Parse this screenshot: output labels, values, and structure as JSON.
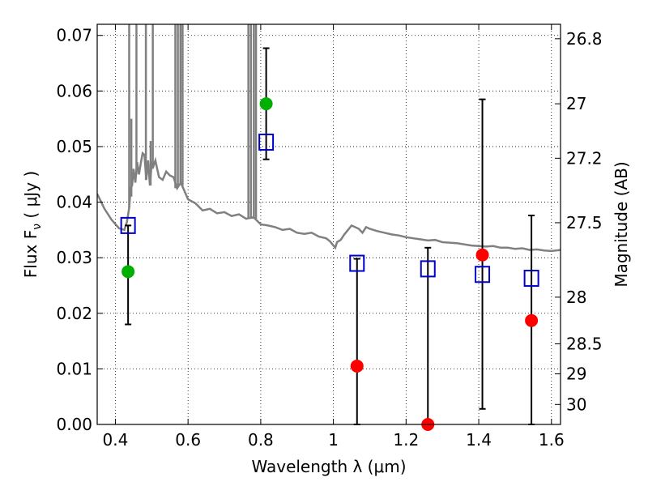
{
  "chart_data": {
    "type": "scatter",
    "xlabel": "Wavelength  λ (μm)",
    "ylabel": "Flux  F",
    "ylabel_sub": "ν",
    "ylabel_unit": " ( μJy )",
    "y2label": "Magnitude (AB)",
    "xlim": [
      0.35,
      1.625
    ],
    "ylim": [
      0.0,
      0.072
    ],
    "grid": true,
    "x_ticks": [
      0.4,
      0.6,
      0.8,
      1.0,
      1.2,
      1.4,
      1.6
    ],
    "x_tick_labels": [
      "0.4",
      "0.6",
      "0.8",
      "1",
      "1.2",
      "1.4",
      "1.6"
    ],
    "y_ticks": [
      0.0,
      0.01,
      0.02,
      0.03,
      0.04,
      0.05,
      0.06,
      0.07
    ],
    "y_tick_labels": [
      "0.00",
      "0.01",
      "0.02",
      "0.03",
      "0.04",
      "0.05",
      "0.06",
      "0.07"
    ],
    "y2_ticks": [
      {
        "label": "26.8",
        "flux": 0.0694
      },
      {
        "label": "27",
        "flux": 0.0577
      },
      {
        "label": "27.2",
        "flux": 0.0479
      },
      {
        "label": "27.5",
        "flux": 0.0363
      },
      {
        "label": "28",
        "flux": 0.0229
      },
      {
        "label": "28.5",
        "flux": 0.0145
      },
      {
        "label": "29",
        "flux": 0.0091
      },
      {
        "label": "30",
        "flux": 0.0036
      }
    ],
    "series": [
      {
        "kind": "model_spectrum",
        "color": "#808080",
        "x": [
          0.35,
          0.37,
          0.39,
          0.41,
          0.425,
          0.432,
          0.438,
          0.442,
          0.446,
          0.45,
          0.455,
          0.46,
          0.465,
          0.47,
          0.475,
          0.48,
          0.485,
          0.49,
          0.495,
          0.5,
          0.505,
          0.51,
          0.52,
          0.53,
          0.54,
          0.55,
          0.56,
          0.57,
          0.58,
          0.59,
          0.6,
          0.62,
          0.64,
          0.66,
          0.68,
          0.7,
          0.72,
          0.74,
          0.76,
          0.78,
          0.8,
          0.82,
          0.84,
          0.86,
          0.88,
          0.9,
          0.92,
          0.94,
          0.96,
          0.98,
          0.99,
          1.0,
          1.005,
          1.01,
          1.02,
          1.03,
          1.04,
          1.05,
          1.06,
          1.07,
          1.08,
          1.09,
          1.1,
          1.12,
          1.14,
          1.16,
          1.18,
          1.2,
          1.22,
          1.24,
          1.26,
          1.28,
          1.3,
          1.32,
          1.34,
          1.36,
          1.38,
          1.4,
          1.42,
          1.44,
          1.46,
          1.48,
          1.5,
          1.52,
          1.54,
          1.56,
          1.58,
          1.6,
          1.625
        ],
        "y": [
          0.0415,
          0.0388,
          0.0368,
          0.0353,
          0.035,
          0.0365,
          0.039,
          0.0425,
          0.043,
          0.046,
          0.0435,
          0.0472,
          0.045,
          0.047,
          0.0488,
          0.0485,
          0.044,
          0.0475,
          0.043,
          0.047,
          0.0465,
          0.0475,
          0.0445,
          0.044,
          0.0455,
          0.0448,
          0.0445,
          0.0425,
          0.0435,
          0.042,
          0.0405,
          0.0398,
          0.0385,
          0.0388,
          0.038,
          0.0382,
          0.0375,
          0.0378,
          0.037,
          0.0373,
          0.036,
          0.0358,
          0.0355,
          0.035,
          0.0352,
          0.0345,
          0.0343,
          0.0345,
          0.0338,
          0.0335,
          0.033,
          0.0322,
          0.0318,
          0.0328,
          0.0332,
          0.0342,
          0.035,
          0.0358,
          0.0355,
          0.0352,
          0.0345,
          0.0355,
          0.0352,
          0.0348,
          0.0345,
          0.0342,
          0.034,
          0.0337,
          0.0335,
          0.0333,
          0.0331,
          0.0332,
          0.0328,
          0.0327,
          0.0326,
          0.0324,
          0.0322,
          0.0321,
          0.032,
          0.0321,
          0.0318,
          0.0318,
          0.0316,
          0.0317,
          0.0314,
          0.0315,
          0.0313,
          0.0312,
          0.0314
        ],
        "spikes": [
          {
            "x": 0.438,
            "from": 0.039,
            "to": 0.072
          },
          {
            "x": 0.444,
            "from": 0.041,
            "to": 0.055
          },
          {
            "x": 0.458,
            "from": 0.045,
            "to": 0.072
          },
          {
            "x": 0.484,
            "from": 0.044,
            "to": 0.072
          },
          {
            "x": 0.497,
            "from": 0.043,
            "to": 0.051
          },
          {
            "x": 0.503,
            "from": 0.046,
            "to": 0.072
          },
          {
            "x": 0.565,
            "from": 0.0425,
            "to": 0.072
          },
          {
            "x": 0.572,
            "from": 0.043,
            "to": 0.072
          },
          {
            "x": 0.579,
            "from": 0.0435,
            "to": 0.072
          },
          {
            "x": 0.585,
            "from": 0.043,
            "to": 0.072
          },
          {
            "x": 0.766,
            "from": 0.0372,
            "to": 0.072
          },
          {
            "x": 0.773,
            "from": 0.037,
            "to": 0.072
          },
          {
            "x": 0.781,
            "from": 0.0372,
            "to": 0.072
          },
          {
            "x": 0.787,
            "from": 0.037,
            "to": 0.072
          }
        ]
      },
      {
        "kind": "detections",
        "color": "#00b000",
        "x": [
          0.435,
          0.815
        ],
        "y": [
          0.0275,
          0.0577
        ]
      },
      {
        "kind": "upper_limits",
        "color": "#ff0000",
        "x": [
          1.065,
          1.26,
          1.41,
          1.545
        ],
        "y": [
          0.0105,
          0.0,
          0.0305,
          0.0187
        ]
      },
      {
        "kind": "model_photometry",
        "color": "#0000cc",
        "x": [
          0.435,
          0.815,
          1.065,
          1.26,
          1.41,
          1.545
        ],
        "y": [
          0.0358,
          0.0508,
          0.029,
          0.028,
          0.027,
          0.0263
        ]
      },
      {
        "kind": "error_bars",
        "color": "#000000",
        "x": [
          0.435,
          0.815,
          1.065,
          1.26,
          1.41,
          1.545
        ],
        "low": [
          0.018,
          0.0477,
          0.0,
          0.0,
          0.0028,
          0.0
        ],
        "high": [
          0.0358,
          0.0677,
          0.0298,
          0.0318,
          0.0585,
          0.0376
        ]
      }
    ]
  }
}
